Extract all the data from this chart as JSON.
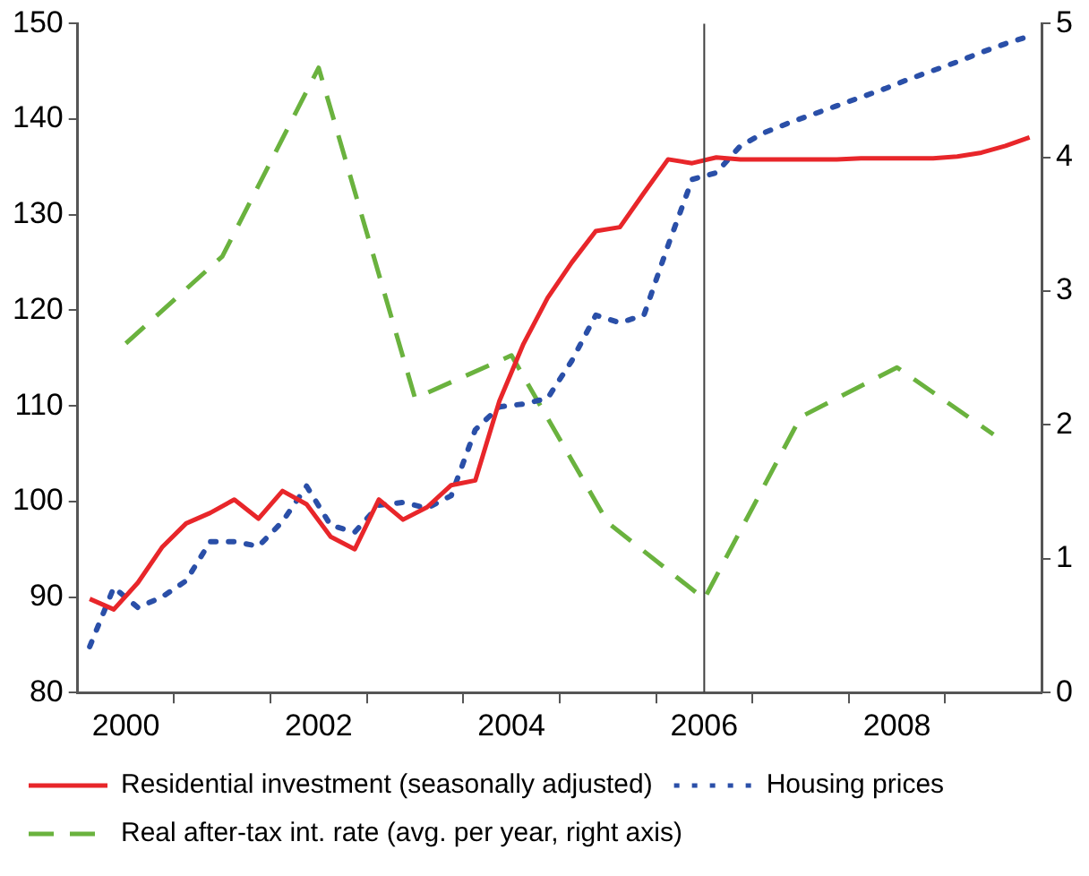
{
  "chart_data": {
    "type": "line",
    "legend": "bottom",
    "marker": "none",
    "grid": false,
    "xlim": [
      1999.5,
      2009.5
    ],
    "xticks": [
      {
        "value": 2000,
        "label": "2000"
      },
      {
        "value": 2000.5,
        "label": null
      },
      {
        "value": 2001.5,
        "label": null
      },
      {
        "value": 2002,
        "label": "2002"
      },
      {
        "value": 2002.5,
        "label": null
      },
      {
        "value": 2003.5,
        "label": null
      },
      {
        "value": 2004,
        "label": "2004"
      },
      {
        "value": 2004.5,
        "label": null
      },
      {
        "value": 2005.5,
        "label": null
      },
      {
        "value": 2006,
        "label": "2006"
      },
      {
        "value": 2006.5,
        "label": null
      },
      {
        "value": 2007.5,
        "label": null
      },
      {
        "value": 2008,
        "label": "2008"
      },
      {
        "value": 2008.5,
        "label": null
      }
    ],
    "ylim": [
      80,
      150
    ],
    "yticks": [
      80,
      90,
      100,
      110,
      120,
      130,
      140,
      150
    ],
    "y2lim": [
      0,
      5
    ],
    "y2ticks": [
      0,
      1,
      2,
      3,
      4,
      5
    ],
    "ref_lines": [
      {
        "axis": "x",
        "value": 2006,
        "color": "#404040"
      }
    ],
    "series": [
      {
        "name": "Residential investment (seasonally adjusted)",
        "color": "#e8262a",
        "line_style": "solid",
        "x": [
          1999.625,
          1999.875,
          2000.125,
          2000.375,
          2000.625,
          2000.875,
          2001.125,
          2001.375,
          2001.625,
          2001.875,
          2002.125,
          2002.375,
          2002.625,
          2002.875,
          2003.125,
          2003.375,
          2003.625,
          2003.875,
          2004.125,
          2004.375,
          2004.625,
          2004.875,
          2005.125,
          2005.375,
          2005.625,
          2005.875,
          2006.125,
          2006.375,
          2006.625,
          2006.875,
          2007.125,
          2007.375,
          2007.625,
          2007.875,
          2008.125,
          2008.375,
          2008.625,
          2008.875,
          2009.125,
          2009.375
        ],
        "values": [
          89.8,
          88.7,
          91.5,
          95.2,
          97.7,
          98.8,
          100.2,
          98.2,
          101.1,
          99.7,
          96.3,
          95.0,
          100.2,
          98.1,
          99.4,
          101.7,
          102.2,
          110.5,
          116.5,
          121.3,
          125.0,
          128.3,
          128.7,
          132.3,
          135.8,
          135.4,
          136.0,
          135.8,
          135.8,
          135.8,
          135.8,
          135.8,
          135.9,
          135.9,
          135.9,
          135.9,
          136.1,
          136.5,
          137.2,
          138.1
        ]
      },
      {
        "name": "Housing prices",
        "color": "#2a4fa8",
        "line_style": "dotted",
        "x": [
          1999.625,
          1999.875,
          2000.125,
          2000.375,
          2000.625,
          2000.875,
          2001.125,
          2001.375,
          2001.625,
          2001.875,
          2002.125,
          2002.375,
          2002.625,
          2002.875,
          2003.125,
          2003.375,
          2003.625,
          2003.875,
          2004.125,
          2004.375,
          2004.625,
          2004.875,
          2005.125,
          2005.375,
          2005.625,
          2005.875,
          2006.125,
          2006.375,
          2006.625,
          2006.875,
          2007.125,
          2007.375,
          2007.625,
          2007.875,
          2008.125,
          2008.375,
          2008.625,
          2008.875,
          2009.125,
          2009.375
        ],
        "values": [
          84.8,
          91.0,
          88.9,
          90.0,
          91.7,
          95.8,
          95.8,
          95.3,
          97.9,
          101.6,
          97.5,
          96.8,
          99.6,
          99.9,
          99.3,
          100.6,
          107.5,
          109.9,
          110.2,
          110.8,
          114.7,
          119.5,
          118.7,
          119.5,
          126.8,
          133.7,
          134.4,
          137.2,
          138.6,
          139.6,
          140.5,
          141.4,
          142.3,
          143.2,
          144.2,
          145.1,
          146.0,
          147.0,
          147.9,
          148.7
        ]
      },
      {
        "name": "Real after-tax int. rate (avg. per year, right axis)",
        "color": "#6ab23e",
        "line_style": "dashed",
        "axis": "y2",
        "x": [
          2000,
          2001,
          2002,
          2003,
          2004,
          2005,
          2006,
          2007,
          2008,
          2009
        ],
        "values": [
          2.61,
          3.26,
          4.67,
          2.2,
          2.52,
          1.27,
          0.7,
          2.06,
          2.43,
          1.93
        ]
      }
    ]
  }
}
